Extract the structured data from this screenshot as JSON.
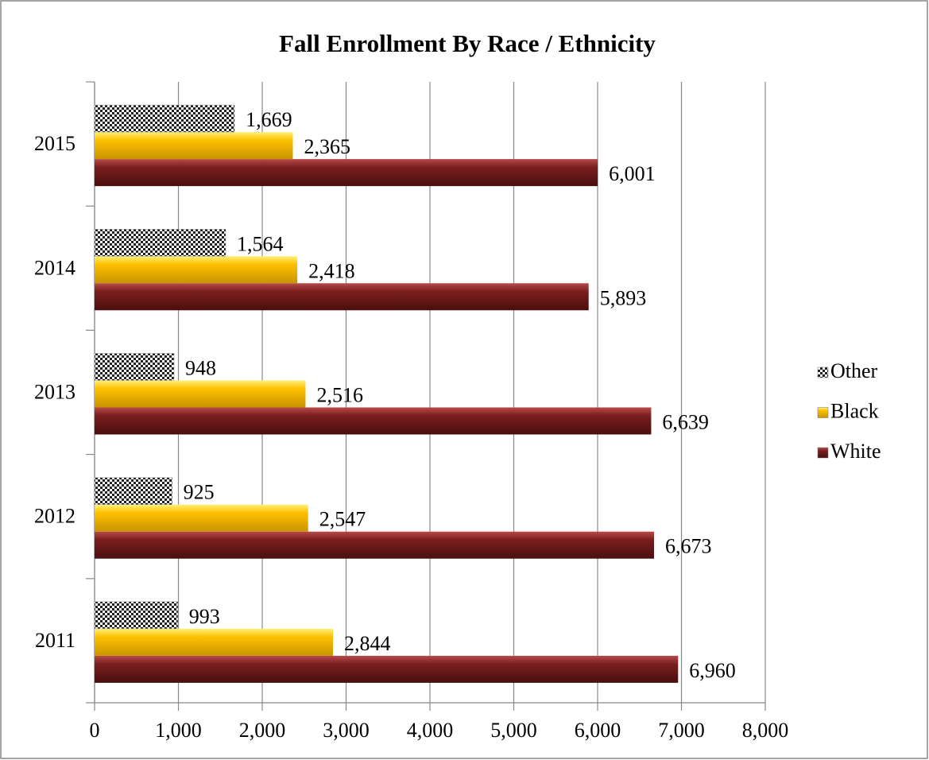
{
  "chart_data": {
    "type": "barh",
    "title": "Fall Enrollment By Race / Ethnicity",
    "categories": [
      "2011",
      "2012",
      "2013",
      "2014",
      "2015"
    ],
    "series": [
      {
        "name": "White",
        "color": "#7b1f1f",
        "values": [
          6960,
          6673,
          6639,
          5893,
          6001
        ],
        "value_labels": [
          "6,960",
          "6,673",
          "6,639",
          "5,893",
          "6,001"
        ]
      },
      {
        "name": "Black",
        "color": "#ffc000",
        "values": [
          2844,
          2547,
          2516,
          2418,
          2365
        ],
        "value_labels": [
          "2,844",
          "2,547",
          "2,516",
          "2,418",
          "2,365"
        ]
      },
      {
        "name": "Other",
        "color": "checker",
        "values": [
          993,
          925,
          948,
          1564,
          1669
        ],
        "value_labels": [
          "993",
          "925",
          "948",
          "1,564",
          "1,669"
        ]
      }
    ],
    "xlim": [
      0,
      8000
    ],
    "xticks": [
      0,
      {
        "value": 1000,
        "label": "1,000"
      },
      {
        "value": 2000,
        "label": "2,000"
      },
      {
        "value": 3000,
        "label": "3,000"
      },
      {
        "value": 4000,
        "label": "4,000"
      },
      {
        "value": 5000,
        "label": "5,000"
      },
      {
        "value": 6000,
        "label": "6,000"
      },
      {
        "value": 7000,
        "label": "7,000"
      },
      {
        "value": 8000,
        "label": "8,000"
      }
    ],
    "grid": true,
    "legend": "right"
  }
}
